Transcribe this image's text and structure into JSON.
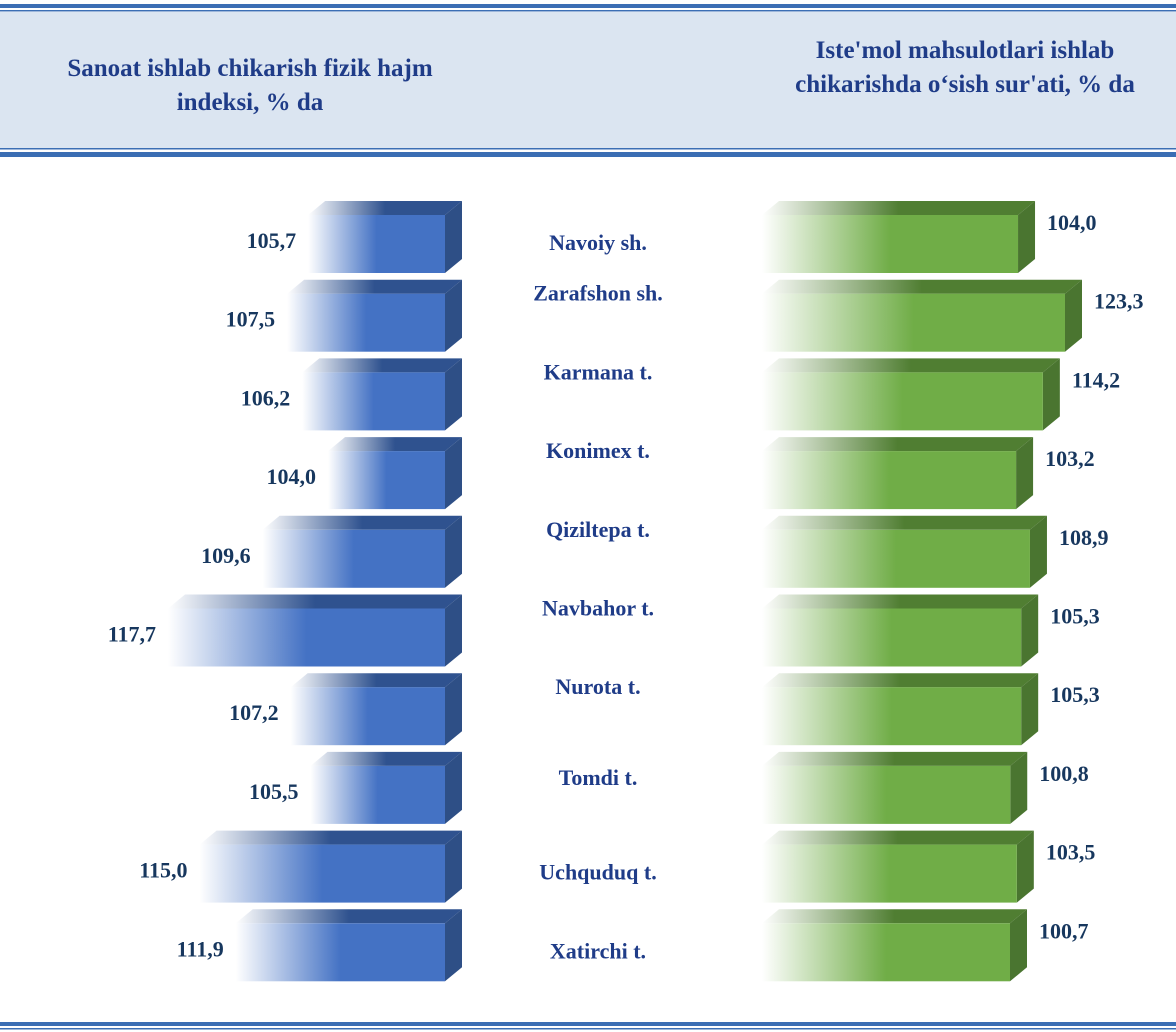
{
  "chart_data": {
    "type": "bar",
    "categories": [
      "Navoiy sh.",
      "Zarafshon sh.",
      "Karmana t.",
      "Konimex t.",
      "Qiziltepa t.",
      "Navbahor t.",
      "Nurota t.",
      "Tomdi t.",
      "Uchquduq t.",
      "Xatirchi t."
    ],
    "series": [
      {
        "name": "Sanoat ishlab chikarish fizik hajm indeksi, % da",
        "color": "#4472c4",
        "values": [
          105.7,
          107.5,
          106.2,
          104.0,
          109.6,
          117.7,
          107.2,
          105.5,
          115.0,
          111.9
        ],
        "value_labels": [
          "105,7",
          "107,5",
          "106,2",
          "104,0",
          "109,6",
          "117,7",
          "107,2",
          "105,5",
          "115,0",
          "111,9"
        ]
      },
      {
        "name": "Iste'mol mahsulotlari ishlab chikarishda o‘sish sur'ati, % da",
        "color": "#70ad47",
        "values": [
          104.0,
          123.3,
          114.2,
          103.2,
          108.9,
          105.3,
          105.3,
          100.8,
          103.5,
          100.7
        ],
        "value_labels": [
          "104,0",
          "123,3",
          "114,2",
          "103,2",
          "108,9",
          "105,3",
          "105,3",
          "100,8",
          "103,5",
          "100,7"
        ]
      }
    ]
  }
}
